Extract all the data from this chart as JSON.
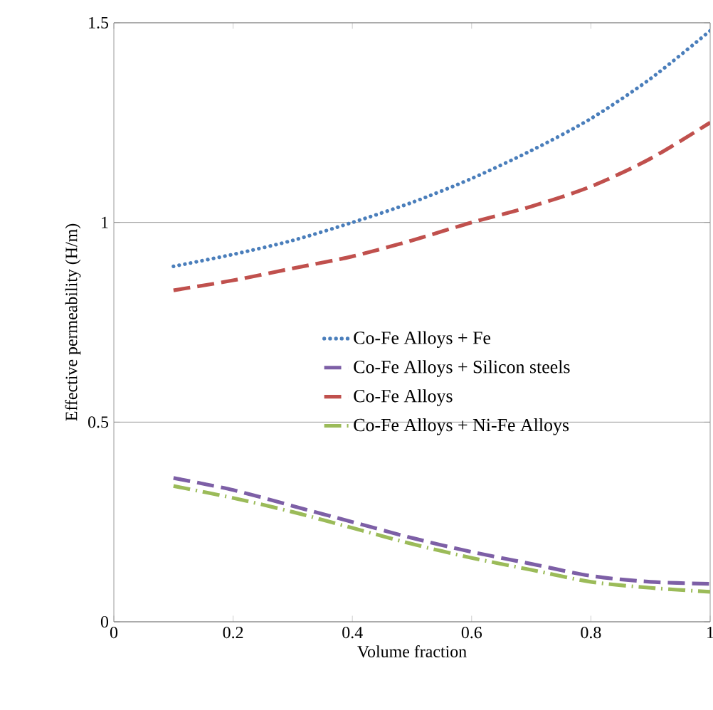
{
  "chart_data": {
    "type": "line",
    "xlabel": "Volume fraction",
    "ylabel": "Effective permeability (H/m)",
    "xlim": [
      0,
      1
    ],
    "ylim": [
      0,
      1.5
    ],
    "xticks": [
      0,
      0.2,
      0.4,
      0.6,
      0.8,
      1
    ],
    "yticks": [
      0,
      0.5,
      1,
      1.5
    ],
    "grid": "y",
    "legend": "center",
    "marker": "none",
    "x": [
      0.1,
      0.2,
      0.3,
      0.4,
      0.5,
      0.6,
      0.7,
      0.8,
      0.9,
      1.0
    ],
    "series": [
      {
        "name": "Co-Fe Alloys + Fe",
        "color": "#4a7ebb",
        "line_style": "dotted",
        "values": [
          0.89,
          0.92,
          0.955,
          1.0,
          1.05,
          1.11,
          1.18,
          1.26,
          1.36,
          1.48
        ]
      },
      {
        "name": "Co-Fe Alloys + Silicon steels",
        "color": "#7d5fa6",
        "line_style": "dashed",
        "values": [
          0.36,
          0.33,
          0.29,
          0.25,
          0.21,
          0.175,
          0.145,
          0.115,
          0.1,
          0.095
        ]
      },
      {
        "name": "Co-Fe Alloys",
        "color": "#c0504d",
        "line_style": "dashed",
        "values": [
          0.83,
          0.855,
          0.885,
          0.915,
          0.955,
          1.0,
          1.04,
          1.09,
          1.16,
          1.25
        ]
      },
      {
        "name": "Co-Fe Alloys + Ni-Fe Alloys",
        "color": "#9bbb59",
        "line_style": "dashdot",
        "values": [
          0.34,
          0.31,
          0.275,
          0.235,
          0.195,
          0.16,
          0.13,
          0.1,
          0.085,
          0.075
        ]
      }
    ]
  }
}
